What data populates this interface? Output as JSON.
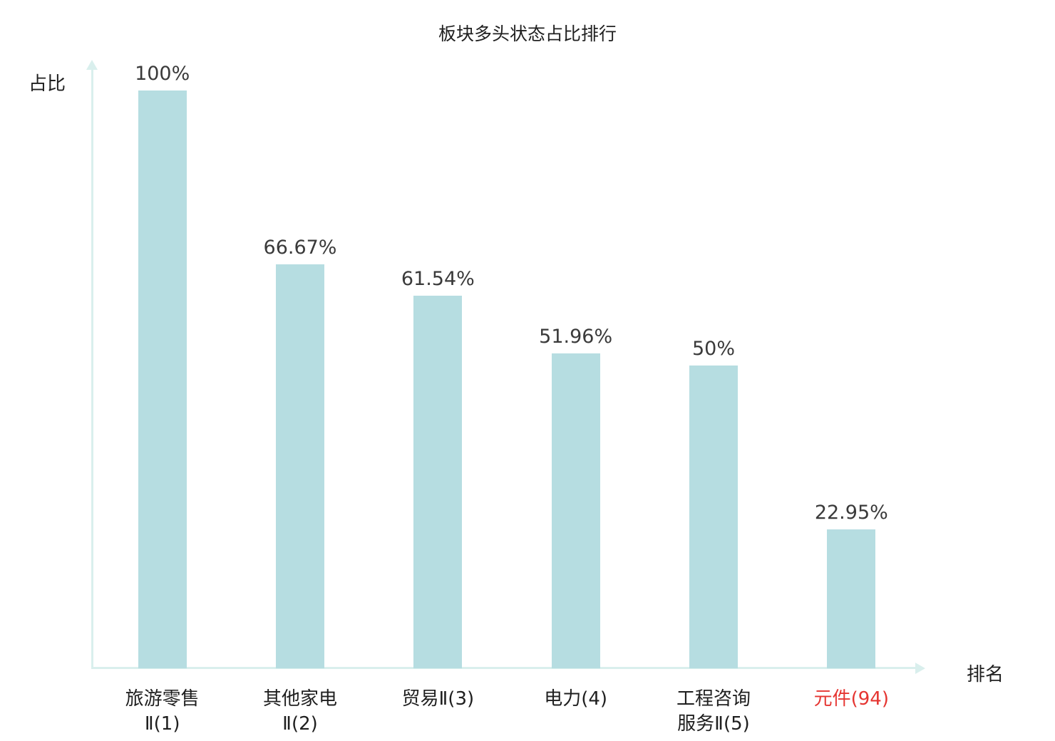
{
  "chart_data": {
    "type": "bar",
    "title": "板块多头状态占比排行",
    "xlabel": "排名",
    "ylabel": "占比",
    "ylim": [
      0,
      100
    ],
    "grid": false,
    "legend": null,
    "categories": [
      {
        "lines": [
          "旅游零售",
          "Ⅱ(1)"
        ],
        "highlight": false
      },
      {
        "lines": [
          "其他家电",
          "Ⅱ(2)"
        ],
        "highlight": false
      },
      {
        "lines": [
          "贸易Ⅱ(3)"
        ],
        "highlight": false
      },
      {
        "lines": [
          "电力(4)"
        ],
        "highlight": false
      },
      {
        "lines": [
          "工程咨询",
          "服务Ⅱ(5)"
        ],
        "highlight": false
      },
      {
        "lines": [
          "元件(94)"
        ],
        "highlight": true
      }
    ],
    "values": [
      100,
      66.67,
      61.54,
      51.96,
      50,
      22.95
    ],
    "value_labels": [
      "100%",
      "66.67%",
      "61.54%",
      "51.96%",
      "50%",
      "22.95%"
    ],
    "colors": {
      "bar_fill": "#b6dde1",
      "axis": "#d9efed",
      "text": "#1f1f1f",
      "value_text": "#3a3a3a",
      "highlight_text": "#e53531"
    }
  }
}
